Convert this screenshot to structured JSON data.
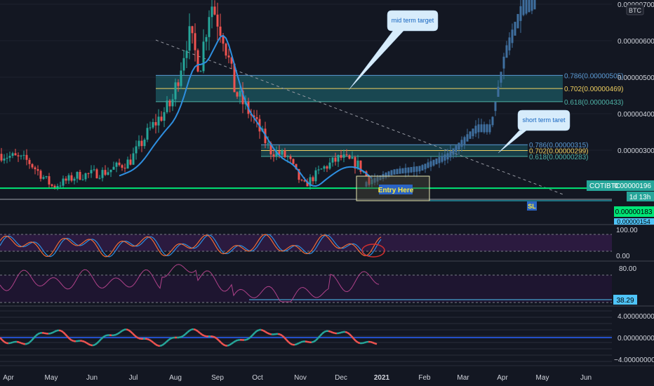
{
  "chart_data": {
    "type": "candlestick",
    "symbol": "COTIBTC",
    "quote_currency": "BTC",
    "last_price": "0.00000196",
    "countdown": "1d 13h",
    "x_ticks": [
      "Apr",
      "May",
      "Jun",
      "Jul",
      "Aug",
      "Sep",
      "Oct",
      "Nov",
      "Dec",
      "2021",
      "Feb",
      "Mar",
      "Apr",
      "May",
      "Jun"
    ],
    "price_ticks": [
      "0.00000700",
      "0.00000600",
      "0.00000500",
      "0.00000400",
      "0.00000300"
    ],
    "price_range": [
      1.4e-06,
      7.2e-06
    ],
    "fib_upper": [
      {
        "label": "0.786(0.00000505)",
        "value": 5.05e-06,
        "color": "#5b9bd5"
      },
      {
        "label": "0.702(0.00000469)",
        "value": 4.69e-06,
        "color": "#f0d060"
      },
      {
        "label": "0.618(0.00000433)",
        "value": 4.33e-06,
        "color": "#4fb3a7"
      }
    ],
    "fib_lower": [
      {
        "label": "0.786(0.00000315)",
        "value": 3.15e-06,
        "color": "#5b9bd5"
      },
      {
        "label": "0.702(0.00000299)",
        "value": 2.99e-06,
        "color": "#f0d060"
      },
      {
        "label": "0.618(0.00000283)",
        "value": 2.83e-06,
        "color": "#4fb3a7"
      }
    ],
    "support_price": 1.96e-06,
    "stop_price": 1.83e-06,
    "stop_label": "0.00000183",
    "lower_label": "0.00000154",
    "annotations": {
      "mid_term": "mid term target",
      "short_term": "short term taret",
      "entry": "Entry Here",
      "sl": "SL"
    },
    "stoch": {
      "ticks": [
        "100.00",
        "0.00"
      ]
    },
    "rsi": {
      "ticks": [
        "80.00"
      ],
      "value_label": "38.29"
    },
    "macd": {
      "ticks": [
        "4.00000000",
        "0.00000000",
        "−4.00000000"
      ]
    },
    "colors": {
      "up": "#26a69a",
      "down": "#ef5350",
      "ma": "#2e8fe0",
      "support": "#00e676",
      "projection": "#3f6f9f",
      "bubble": "#d7ecfb",
      "bubble_text": "#1565c0"
    }
  }
}
